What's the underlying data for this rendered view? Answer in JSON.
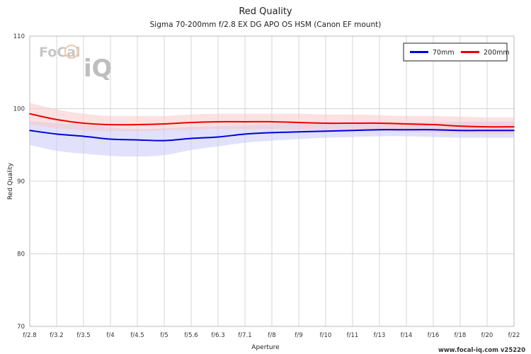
{
  "chart_data": {
    "type": "line",
    "title": "Red Quality",
    "subtitle": "Sigma 70-200mm f/2.8 EX DG APO OS HSM (Canon EF mount)",
    "xlabel": "Aperture",
    "ylabel": "Red Quality",
    "categories": [
      "f/2.8",
      "f/3.2",
      "f/3.5",
      "f/4",
      "f/4.5",
      "f/5",
      "f/5.6",
      "f/6.3",
      "f/7.1",
      "f/8",
      "f/9",
      "f/10",
      "f/11",
      "f/13",
      "f/14",
      "f/16",
      "f/18",
      "f/20",
      "f/22"
    ],
    "ylim": [
      70,
      110
    ],
    "yticks": [
      "70",
      "80",
      "90",
      "100",
      "110"
    ],
    "grid": true,
    "legend_position": "top-right",
    "series": [
      {
        "name": "70mm",
        "color": "#0000dd",
        "band_color": "#c8c8f8",
        "values": [
          97.0,
          96.5,
          96.2,
          95.8,
          95.7,
          95.6,
          95.9,
          96.1,
          96.5,
          96.7,
          96.8,
          96.9,
          97.0,
          97.1,
          97.1,
          97.1,
          97.0,
          97.0,
          97.0
        ],
        "band_low": [
          95.0,
          94.2,
          93.8,
          93.5,
          93.4,
          93.6,
          94.3,
          94.8,
          95.3,
          95.6,
          95.8,
          96.0,
          96.1,
          96.2,
          96.2,
          96.1,
          96.0,
          96.0,
          96.0
        ],
        "band_high": [
          98.3,
          98.0,
          97.8,
          97.4,
          97.2,
          97.3,
          97.5,
          97.6,
          97.7,
          97.8,
          97.9,
          98.0,
          98.0,
          98.1,
          98.1,
          98.1,
          98.2,
          98.2,
          98.2
        ]
      },
      {
        "name": "200mm",
        "color": "#ee0000",
        "band_color": "#f8c8c8",
        "values": [
          99.3,
          98.5,
          98.0,
          97.8,
          97.8,
          97.9,
          98.1,
          98.2,
          98.2,
          98.2,
          98.1,
          98.0,
          98.0,
          98.0,
          97.9,
          97.8,
          97.6,
          97.5,
          97.5
        ],
        "band_low": [
          97.8,
          97.3,
          97.0,
          96.9,
          96.9,
          97.0,
          97.1,
          97.2,
          97.2,
          97.2,
          97.1,
          97.0,
          97.0,
          96.9,
          96.8,
          96.7,
          96.6,
          96.5,
          96.5
        ],
        "band_high": [
          100.8,
          99.9,
          99.3,
          99.0,
          99.0,
          99.0,
          99.2,
          99.3,
          99.3,
          99.3,
          99.3,
          99.2,
          99.2,
          99.1,
          99.0,
          99.0,
          98.9,
          98.8,
          98.8
        ]
      }
    ]
  },
  "logo": {
    "text_top": "FoCal",
    "text_bottom": "iQ"
  },
  "footer": "www.focal-iq.com  v25220"
}
